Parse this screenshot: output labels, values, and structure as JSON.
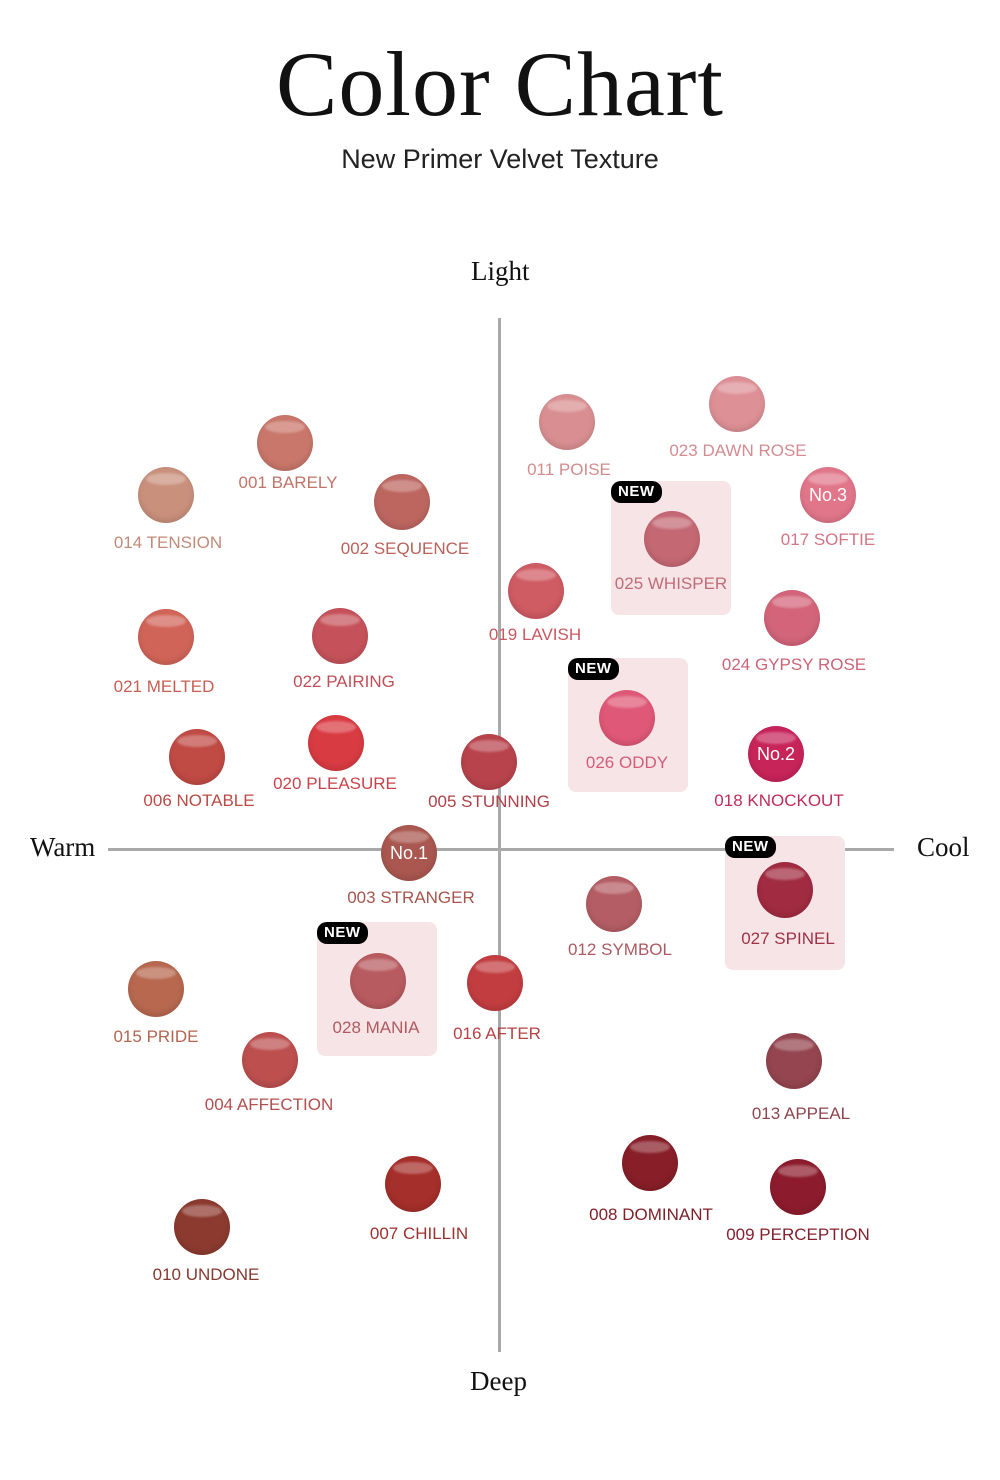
{
  "header": {
    "title": "Color Chart",
    "subtitle": "New Primer Velvet Texture"
  },
  "axes": {
    "top": "Light",
    "bottom": "Deep",
    "left": "Warm",
    "right": "Cool"
  },
  "shades": {
    "s001": {
      "label": "001 BARELY",
      "color": "#c9776a",
      "label_color": "#c07468",
      "badge": "",
      "new": ""
    },
    "s002": {
      "label": "002 SEQUENCE",
      "color": "#bd6660",
      "label_color": "#b8625a",
      "badge": "",
      "new": ""
    },
    "s014": {
      "label": "014 TENSION",
      "color": "#c9907c",
      "label_color": "#c28a78",
      "badge": "",
      "new": ""
    },
    "s021": {
      "label": "021 MELTED",
      "color": "#d16458",
      "label_color": "#c75e52",
      "badge": "",
      "new": ""
    },
    "s022": {
      "label": "022 PAIRING",
      "color": "#c5525a",
      "label_color": "#c04e56",
      "badge": "",
      "new": ""
    },
    "s006": {
      "label": "006 NOTABLE",
      "color": "#c04a44",
      "label_color": "#bb4a44",
      "badge": "",
      "new": ""
    },
    "s020": {
      "label": "020 PLEASURE",
      "color": "#d93b42",
      "label_color": "#c9434a",
      "badge": "",
      "new": ""
    },
    "s005": {
      "label": "005 STUNNING",
      "color": "#b8434c",
      "label_color": "#ad4048",
      "badge": "",
      "new": ""
    },
    "s011": {
      "label": "011 POISE",
      "color": "#d98f91",
      "label_color": "#d28c8e",
      "badge": "",
      "new": ""
    },
    "s023": {
      "label": "023 DAWN ROSE",
      "color": "#dd9096",
      "label_color": "#d38c92",
      "badge": "",
      "new": ""
    },
    "s017": {
      "label": "017 SOFTIE",
      "color": "#e1768a",
      "label_color": "#d27484",
      "badge": "No.3",
      "new": ""
    },
    "s025": {
      "label": "025 WHISPER",
      "color": "#c46873",
      "label_color": "#c06c76",
      "badge": "",
      "new": "NEW"
    },
    "s019": {
      "label": "019 LAVISH",
      "color": "#cf5b63",
      "label_color": "#c8585f",
      "badge": "",
      "new": ""
    },
    "s024": {
      "label": "024 GYPSY ROSE",
      "color": "#d3647a",
      "label_color": "#cc6478",
      "badge": "",
      "new": ""
    },
    "s026": {
      "label": "026 ODDY",
      "color": "#df5877",
      "label_color": "#d35d78",
      "badge": "",
      "new": "NEW"
    },
    "s018": {
      "label": "018 KNOCKOUT",
      "color": "#c7245a",
      "label_color": "#bf2d5a",
      "badge": "No.2",
      "new": ""
    },
    "s003": {
      "label": "003 STRANGER",
      "color": "#a9574f",
      "label_color": "#a5554d",
      "badge": "No.1",
      "new": ""
    },
    "s012": {
      "label": "012 SYMBOL",
      "color": "#b45d64",
      "label_color": "#ac5a61",
      "badge": "",
      "new": ""
    },
    "s027": {
      "label": "027 SPINEL",
      "color": "#a12b41",
      "label_color": "#9e3144",
      "badge": "",
      "new": "NEW"
    },
    "s028": {
      "label": "028 MANIA",
      "color": "#b85b60",
      "label_color": "#b05a5f",
      "badge": "",
      "new": "NEW"
    },
    "s016": {
      "label": "016 AFTER",
      "color": "#c23d40",
      "label_color": "#b64245",
      "badge": "",
      "new": ""
    },
    "s015": {
      "label": "015 PRIDE",
      "color": "#b7684f",
      "label_color": "#b0664f",
      "badge": "",
      "new": ""
    },
    "s004": {
      "label": "004 AFFECTION",
      "color": "#bd4f4f",
      "label_color": "#b34e4e",
      "badge": "",
      "new": ""
    },
    "s013": {
      "label": "013 APPEAL",
      "color": "#94454f",
      "label_color": "#8f454e",
      "badge": "",
      "new": ""
    },
    "s008": {
      "label": "008 DOMINANT",
      "color": "#871e28",
      "label_color": "#7f2029",
      "badge": "",
      "new": ""
    },
    "s009": {
      "label": "009 PERCEPTION",
      "color": "#8c1c2d",
      "label_color": "#84202f",
      "badge": "",
      "new": ""
    },
    "s007": {
      "label": "007 CHILLIN",
      "color": "#a52f2a",
      "label_color": "#9c322d",
      "badge": "",
      "new": ""
    },
    "s010": {
      "label": "010 UNDONE",
      "color": "#8c3a2f",
      "label_color": "#86392f",
      "badge": "",
      "new": ""
    }
  }
}
